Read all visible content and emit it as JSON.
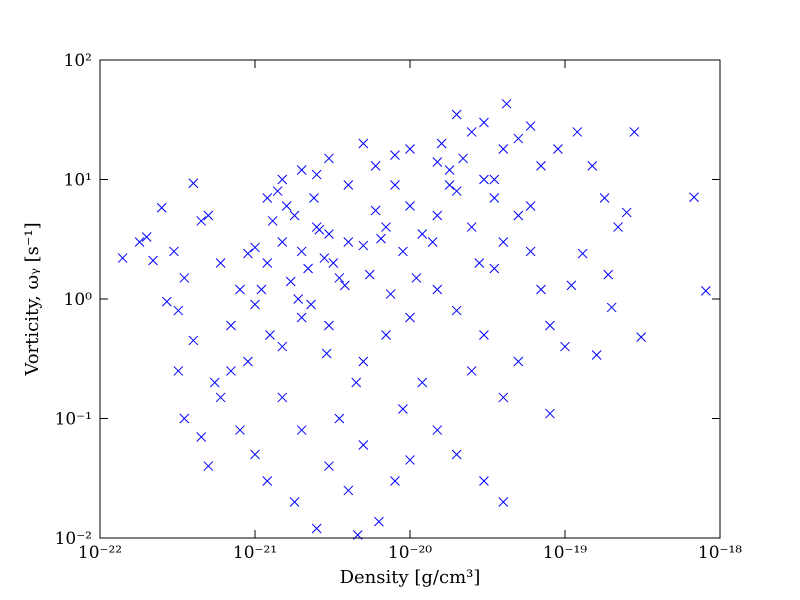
{
  "chart_data": {
    "type": "scatter",
    "xlabel": "Density [g/cm³]",
    "ylabel": "Vorticity, ωᵧ [s⁻¹]",
    "xscale": "log",
    "yscale": "log",
    "xlim": [
      1e-22,
      1e-18
    ],
    "ylim": [
      0.01,
      100
    ],
    "xticks": [
      {
        "value": 1e-22,
        "label": "10⁻²²"
      },
      {
        "value": 1e-21,
        "label": "10⁻²¹"
      },
      {
        "value": 1e-20,
        "label": "10⁻²⁰"
      },
      {
        "value": 1e-19,
        "label": "10⁻¹⁹"
      },
      {
        "value": 1e-18,
        "label": "10⁻¹⁸"
      }
    ],
    "yticks": [
      {
        "value": 0.01,
        "label": "10⁻²"
      },
      {
        "value": 0.1,
        "label": "10⁻¹"
      },
      {
        "value": 1,
        "label": "10⁰"
      },
      {
        "value": 10,
        "label": "10¹"
      },
      {
        "value": 100,
        "label": "10²"
      }
    ],
    "series": [
      {
        "color": "#0000ff",
        "marker": "x",
        "x": [
          1.5e-21,
          2e-21,
          2.5e-21,
          1.2e-21,
          3e-21,
          1.8e-21,
          2.2e-21,
          1e-21,
          4e-21,
          1.6e-21,
          2.8e-21,
          1.3e-21,
          3.5e-21,
          2.4e-21,
          1.1e-21,
          5e-21,
          1.9e-21,
          2.6e-21,
          1.4e-21,
          3.2e-21,
          1.5e-20,
          2e-20,
          2.5e-20,
          3e-20,
          1e-20,
          1.8e-20,
          4e-20,
          2.2e-20,
          1.2e-20,
          3.5e-20,
          8e-21,
          2.8e-20,
          5e-20,
          1.6e-20,
          6e-20,
          7e-21,
          9e-21,
          6e-21,
          1.1e-20,
          1.4e-20,
          4.2e-20,
          2.8e-19,
          1.4e-22,
          6.8e-19,
          8.1e-19,
          3.1e-19,
          2.2e-19,
          1.5e-19,
          1.2e-19,
          9e-20,
          2e-19,
          1.9e-19,
          1.6e-19,
          1e-19,
          1.3e-19,
          8e-20,
          2.5e-19,
          1.8e-19,
          1.1e-19,
          7e-20,
          1.8e-22,
          2e-22,
          2.5e-22,
          3e-22,
          3.5e-22,
          4e-22,
          2.2e-22,
          3.2e-22,
          4.5e-22,
          2.7e-22,
          3.2e-22,
          3.5e-22,
          4e-22,
          4.5e-22,
          5e-22,
          5.5e-22,
          6e-22,
          7e-22,
          8e-22,
          9e-22,
          1e-21,
          1.2e-21,
          1.5e-21,
          1.8e-21,
          2e-21,
          2.5e-21,
          3e-21,
          3.5e-21,
          4e-21,
          5e-21,
          6.3e-21,
          4.6e-21,
          8e-21,
          1e-20,
          1.5e-20,
          2e-20,
          3e-20,
          4e-20,
          1.2e-20,
          9e-21,
          5e-21,
          7e-21,
          3e-21,
          1.5e-21,
          2e-21,
          8e-22,
          6e-22,
          5e-22,
          7e-22,
          1e-21,
          2e-20,
          3e-20,
          1.5e-20,
          5e-20,
          6e-20,
          4e-20,
          2.5e-20,
          1e-20,
          8e-20,
          3.5e-20,
          1.5e-21,
          2e-21,
          3e-21,
          4e-21,
          6e-21,
          5e-21,
          1.2e-21,
          2.5e-21,
          8e-21,
          1e-20,
          2.5e-20,
          3e-20,
          4e-20,
          5e-20,
          6e-20,
          2e-20,
          1.5e-20,
          3.5e-20,
          7e-20,
          1.8e-20,
          5.5e-21,
          3.8e-21,
          2.3e-21,
          1.7e-21,
          1.25e-21,
          9e-22,
          7.5e-21,
          4.5e-21,
          2.9e-21,
          6.5e-21
        ],
        "values": [
          3,
          2.5,
          4,
          2,
          3.5,
          5,
          1.8,
          2.7,
          3,
          6,
          2.2,
          4.5,
          1.5,
          7,
          1.2,
          2.8,
          1,
          3.8,
          8,
          2,
          5,
          8,
          4,
          10,
          6,
          12,
          3,
          15,
          3.5,
          7,
          9,
          2,
          5,
          20,
          6,
          4,
          2.5,
          5.5,
          1.5,
          3,
          43,
          25,
          2.2,
          7.1,
          1.17,
          0.48,
          4,
          13,
          25,
          18,
          0.85,
          1.6,
          0.34,
          0.4,
          2.4,
          0.11,
          5.3,
          7,
          1.3,
          1.2,
          3,
          3.3,
          5.8,
          2.5,
          1.5,
          9.3,
          2.1,
          0.8,
          4.5,
          0.95,
          0.25,
          0.1,
          0.45,
          0.07,
          0.04,
          0.2,
          0.15,
          0.6,
          0.08,
          0.3,
          0.05,
          0.03,
          0.15,
          0.02,
          0.08,
          0.012,
          0.04,
          0.1,
          0.025,
          0.06,
          0.0137,
          0.0106,
          0.03,
          0.045,
          0.08,
          0.05,
          0.03,
          0.02,
          0.2,
          0.12,
          0.3,
          0.5,
          0.6,
          0.4,
          0.7,
          1.2,
          2,
          5,
          0.25,
          0.9,
          0.8,
          0.5,
          1.2,
          0.3,
          2.5,
          0.15,
          0.25,
          0.7,
          0.6,
          1.8,
          10,
          12,
          15,
          9,
          13,
          20,
          7,
          11,
          16,
          18,
          25,
          30,
          18,
          22,
          28,
          35,
          14,
          10,
          13,
          9,
          1.6,
          1.3,
          0.9,
          1.4,
          0.5,
          2.4,
          1.1,
          0.2,
          0.35,
          3.2
        ]
      }
    ]
  }
}
